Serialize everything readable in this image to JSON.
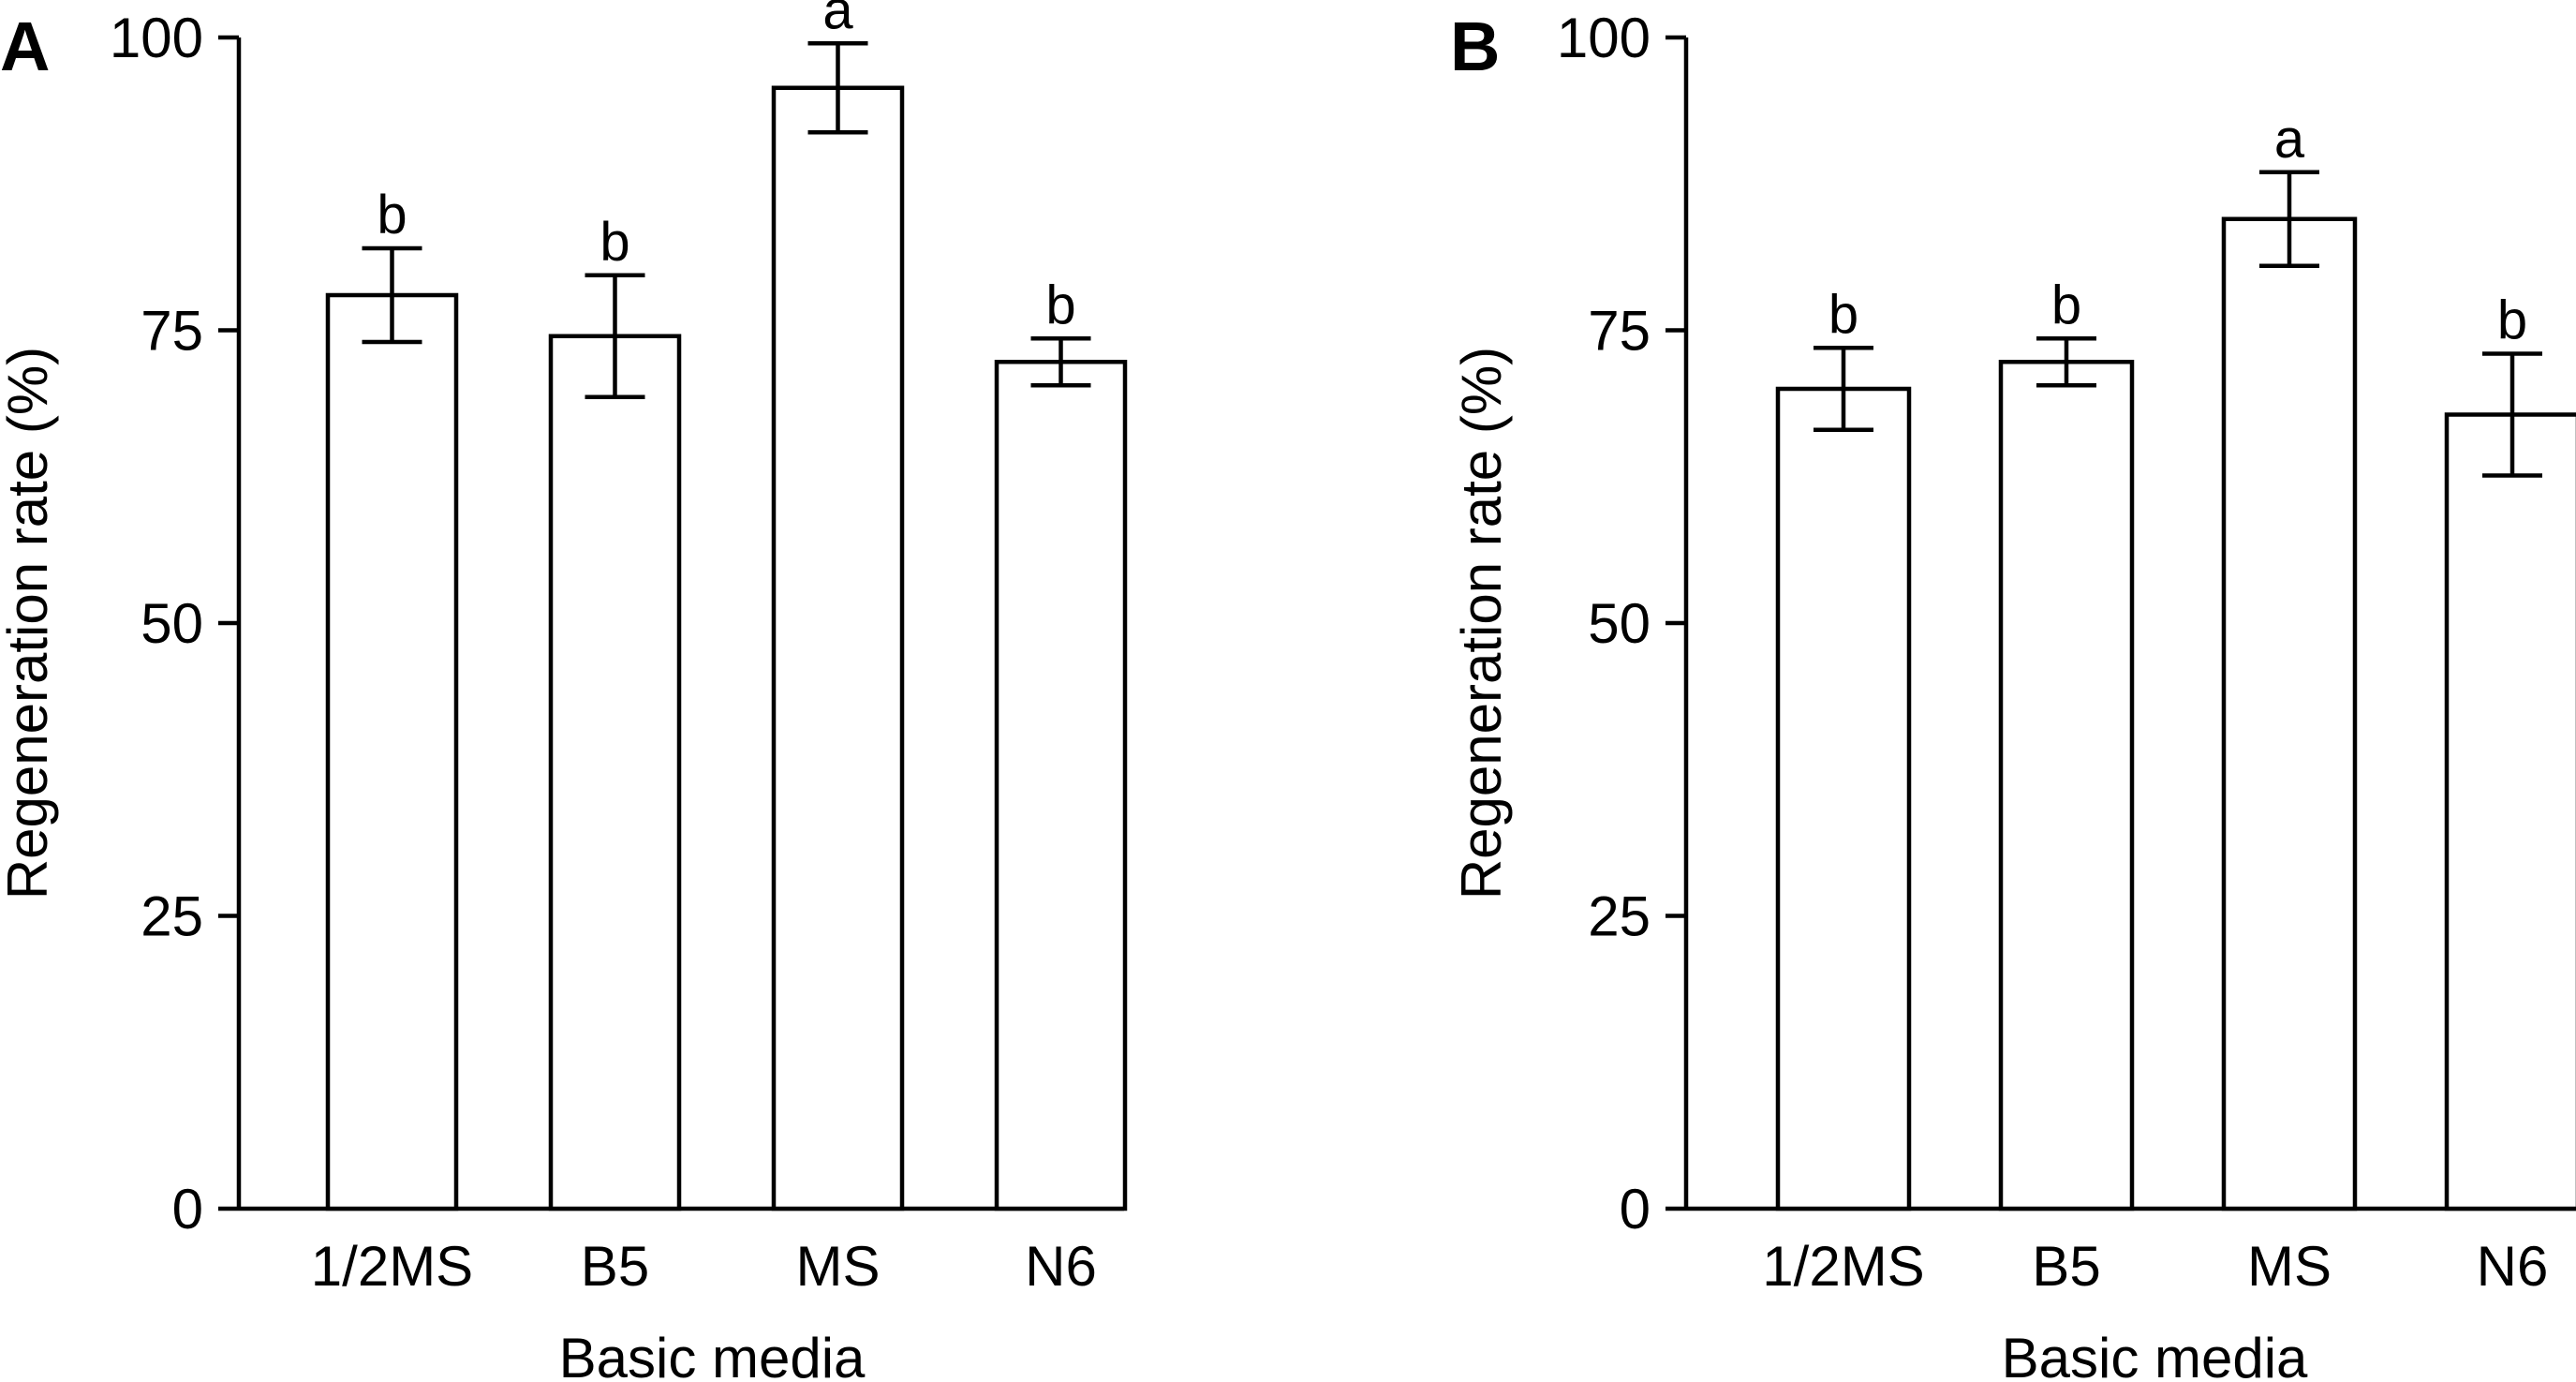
{
  "chart_data": [
    {
      "type": "bar",
      "panel_label": "A",
      "categories": [
        "1/2MS",
        "B5",
        "MS",
        "N6"
      ],
      "values": [
        78,
        74.5,
        95.7,
        72.3
      ],
      "error": [
        4,
        5.2,
        3.8,
        2
      ],
      "significance": [
        "b",
        "b",
        "a",
        "b"
      ],
      "xlabel": "Basic media",
      "ylabel": "Regeneration rate (%)",
      "ylim": [
        0,
        100
      ],
      "yticks": [
        0,
        25,
        50,
        75,
        100
      ],
      "grid": false,
      "bar_fill": "#ffffff",
      "stroke_color": "#000000"
    },
    {
      "type": "bar",
      "panel_label": "B",
      "categories": [
        "1/2MS",
        "B5",
        "MS",
        "N6"
      ],
      "values": [
        70,
        72.3,
        84.5,
        67.8
      ],
      "error": [
        3.5,
        2,
        4,
        5.2
      ],
      "significance": [
        "b",
        "b",
        "a",
        "b"
      ],
      "xlabel": "Basic media",
      "ylabel": "Regeneration rate (%)",
      "ylim": [
        0,
        100
      ],
      "yticks": [
        0,
        25,
        50,
        75,
        100
      ],
      "grid": false,
      "bar_fill": "#ffffff",
      "stroke_color": "#000000"
    }
  ]
}
